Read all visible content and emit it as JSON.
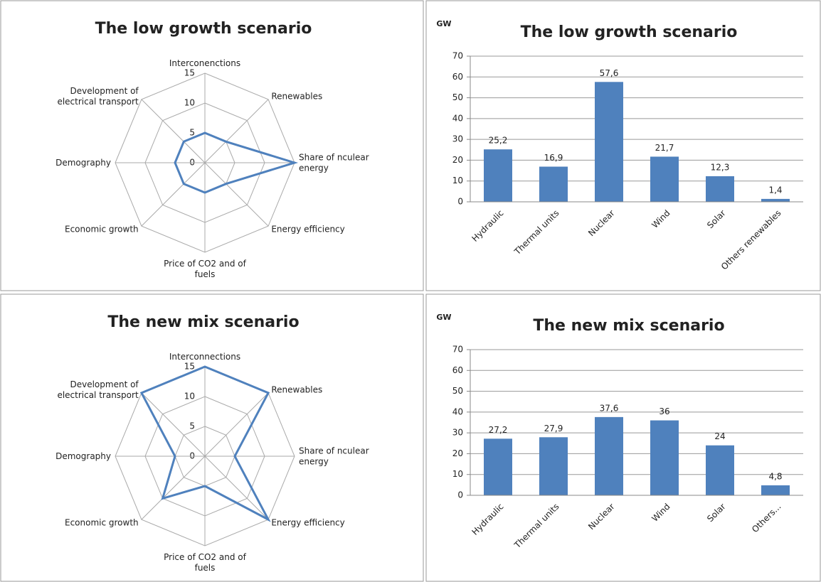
{
  "chart_data": [
    {
      "type": "radar",
      "title": "The low growth scenario",
      "categories": [
        "Interconenctions",
        "Renewables",
        "Share of nculear energy",
        "Energy efficiency",
        "Price of CO2 and of fuels",
        "Economic growth",
        "Demography",
        "Development of electrical transport"
      ],
      "values": [
        5,
        5,
        15,
        5,
        5,
        5,
        5,
        5
      ],
      "color": "#4f81bd",
      "rlim": [
        0,
        15
      ],
      "rticks": [
        0,
        5,
        10,
        15
      ]
    },
    {
      "type": "bar",
      "title": "The low growth scenario",
      "y_label": "GW",
      "categories": [
        "Hydraulic",
        "Thermal units",
        "Nuclear",
        "Wind",
        "Solar",
        "Others renewables"
      ],
      "values": [
        25.2,
        16.9,
        57.6,
        21.7,
        12.3,
        1.4
      ],
      "value_labels": [
        "25,2",
        "16,9",
        "57,6",
        "21,7",
        "12,3",
        "1,4"
      ],
      "color": "#4f81bd",
      "ylim": [
        0,
        70
      ],
      "yticks": [
        0,
        10,
        20,
        30,
        40,
        50,
        60,
        70
      ],
      "grid": true
    },
    {
      "type": "radar",
      "title": "The new mix scenario",
      "categories": [
        "Interconnections",
        "Renewables",
        "Share of nculear energy",
        "Energy efficiency",
        "Price of CO2 and of fuels",
        "Economic growth",
        "Demography",
        "Development of electrical transport"
      ],
      "values": [
        15,
        15,
        5,
        15,
        5,
        10,
        5,
        15
      ],
      "color": "#4f81bd",
      "rlim": [
        0,
        15
      ],
      "rticks": [
        0,
        5,
        10,
        15
      ]
    },
    {
      "type": "bar",
      "title": "The new mix scenario",
      "y_label": "GW",
      "categories": [
        "Hydraulic",
        "Thermal units",
        "Nuclear",
        "Wind",
        "Solar",
        "Others..."
      ],
      "values": [
        27.2,
        27.9,
        37.6,
        36,
        24,
        4.8
      ],
      "value_labels": [
        "27,2",
        "27,9",
        "37,6",
        "36",
        "24",
        "4,8"
      ],
      "color": "#4f81bd",
      "ylim": [
        0,
        70
      ],
      "yticks": [
        0,
        10,
        20,
        30,
        40,
        50,
        60,
        70
      ],
      "grid": true
    }
  ]
}
